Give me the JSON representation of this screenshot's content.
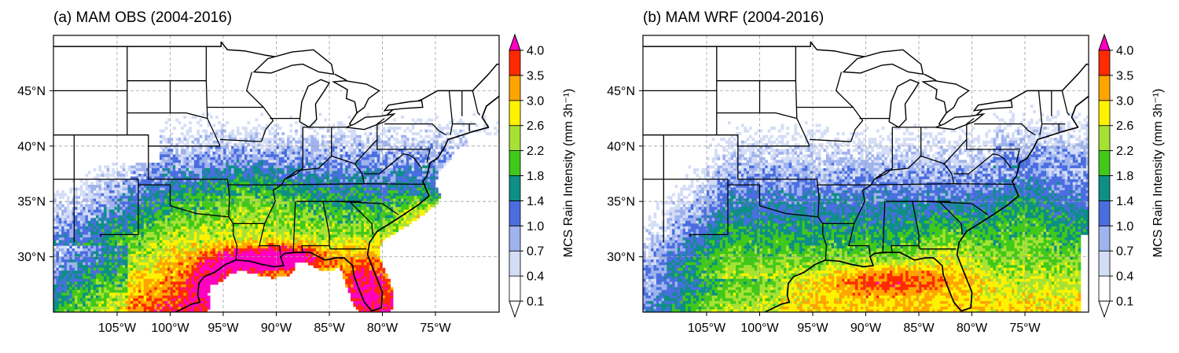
{
  "panels": [
    {
      "title": "(a) MAM OBS (2004-2016)",
      "pattern": "obs"
    },
    {
      "title": "(b) MAM WRF (2004-2016)",
      "pattern": "wrf"
    }
  ],
  "map_extent": {
    "lon": [
      -111,
      -69
    ],
    "lat": [
      25,
      50
    ]
  },
  "lon_ticks": [
    {
      "value": -105,
      "label": "105°W"
    },
    {
      "value": -100,
      "label": "100°W"
    },
    {
      "value": -95,
      "label": "95°W"
    },
    {
      "value": -90,
      "label": "90°W"
    },
    {
      "value": -85,
      "label": "85°W"
    },
    {
      "value": -80,
      "label": "80°W"
    },
    {
      "value": -75,
      "label": "75°W"
    }
  ],
  "lat_ticks": [
    {
      "value": 30,
      "label": "30°N"
    },
    {
      "value": 35,
      "label": "35°N"
    },
    {
      "value": 40,
      "label": "40°N"
    },
    {
      "value": 45,
      "label": "45°N"
    }
  ],
  "colorbar": {
    "label": "MCS Rain Intensity (mm 3h⁻¹)",
    "levels": [
      "0.1",
      "0.4",
      "0.7",
      "1.0",
      "1.4",
      "1.8",
      "2.2",
      "2.6",
      "3.0",
      "3.5",
      "4.0"
    ],
    "colors": [
      "#ffffff",
      "#d4ddf6",
      "#9fb3ee",
      "#4a6ee0",
      "#0e8f86",
      "#40c81a",
      "#a6e234",
      "#fff200",
      "#ffa500",
      "#ff2a00"
    ],
    "under_color": "#ffffff",
    "over_color": "#ff00c0"
  }
}
